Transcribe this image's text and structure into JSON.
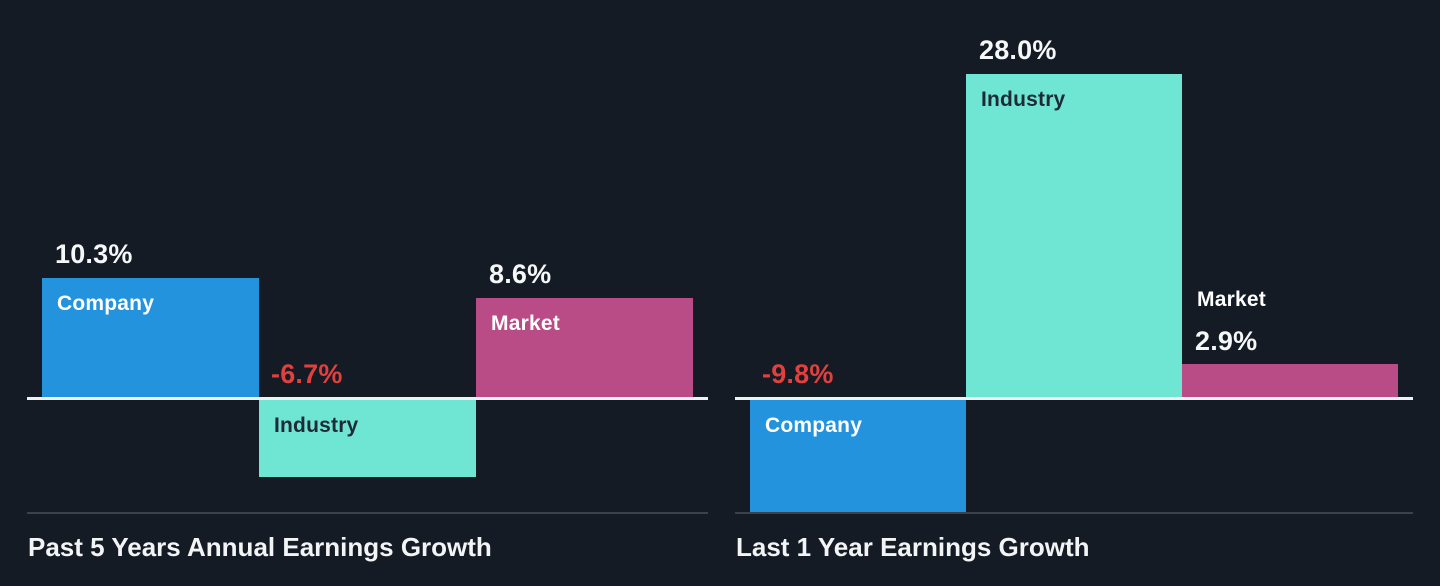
{
  "palette": {
    "background": "#151B24",
    "axis_line": "#EEF1F3",
    "separator": "#3C424A",
    "title_text": "#F2F4F6",
    "positive_value_text": "#F5F7F8",
    "negative_value_text": "#E0403E",
    "series": {
      "Company": {
        "bar": "#2493DD",
        "label": "#FFFFFF"
      },
      "Industry": {
        "bar": "#6FE5D3",
        "label": "#1E2B36"
      },
      "Market": {
        "bar": "#B94B86",
        "label": "#FFFFFF"
      }
    }
  },
  "chart_data": [
    {
      "type": "bar",
      "title": "Past 5 Years Annual Earnings Growth",
      "categories": [
        "Company",
        "Industry",
        "Market"
      ],
      "values": [
        10.3,
        -6.7,
        8.6
      ],
      "value_labels": [
        "10.3%",
        "-6.7%",
        "8.6%"
      ],
      "unit": "%",
      "baseline": 0,
      "grid": false,
      "legend": "none",
      "ylim": [
        -12,
        30
      ]
    },
    {
      "type": "bar",
      "title": "Last 1 Year Earnings Growth",
      "categories": [
        "Company",
        "Industry",
        "Market"
      ],
      "values": [
        -9.8,
        28.0,
        2.9
      ],
      "value_labels": [
        "-9.8%",
        "28.0%",
        "2.9%"
      ],
      "unit": "%",
      "baseline": 0,
      "grid": false,
      "legend": "none",
      "ylim": [
        -12,
        30
      ]
    }
  ]
}
